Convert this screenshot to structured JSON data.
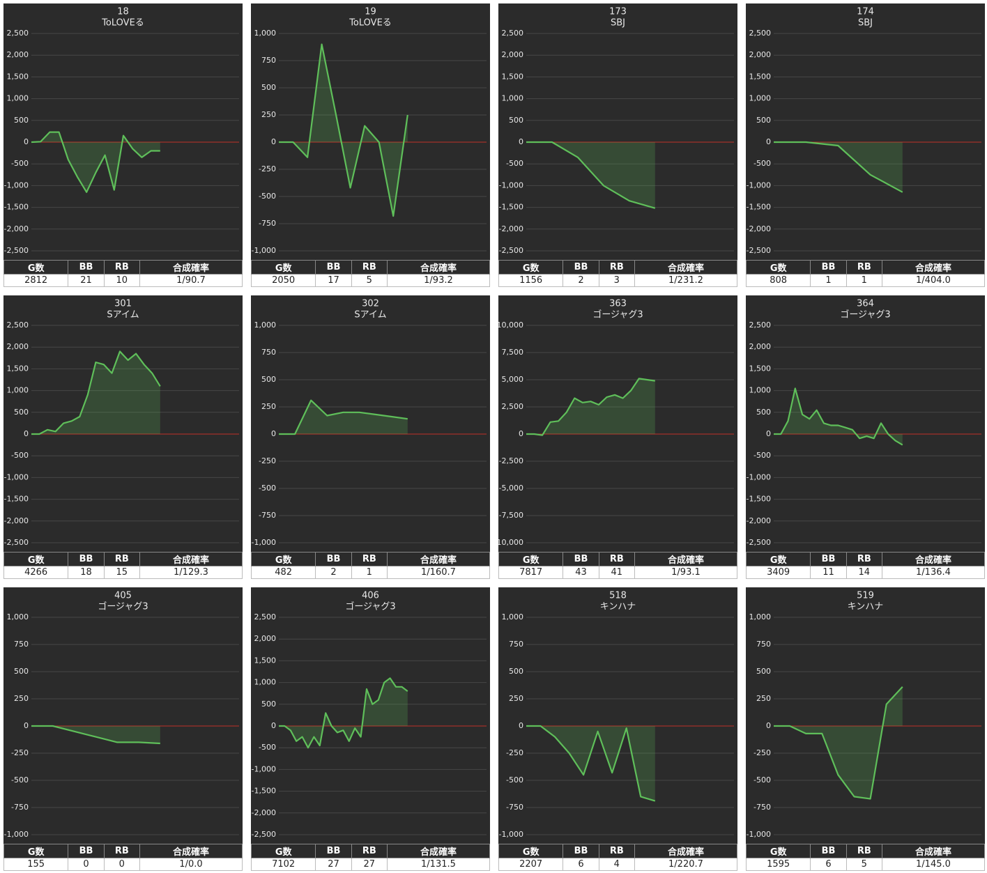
{
  "chart_data": [
    {
      "type": "line",
      "title": "18",
      "subtitle": "ToLOVEる",
      "color": "#5fbf5a",
      "grid": true,
      "ylim": [
        -2500,
        2500
      ],
      "yticks": [
        {
          "value": -2500,
          "label": "-2,500"
        },
        {
          "value": -2000,
          "label": "-2,000"
        },
        {
          "value": -1500,
          "label": "-1,500"
        },
        {
          "value": -1000,
          "label": "-1,000"
        },
        -500,
        0,
        500,
        {
          "value": 1000,
          "label": "1,000"
        },
        {
          "value": 1500,
          "label": "1,500"
        },
        {
          "value": 2000,
          "label": "2,000"
        },
        {
          "value": 2500,
          "label": "2,500"
        }
      ],
      "values": [
        0,
        10,
        230,
        230,
        -400,
        -800,
        -1150,
        -700,
        -300,
        -1100,
        150,
        -150,
        -350,
        -200,
        -200
      ],
      "table": {
        "columns": [
          "G数",
          "BB",
          "RB",
          "合成確率"
        ],
        "row": [
          2812,
          21,
          10,
          "1/90.7"
        ]
      }
    },
    {
      "type": "line",
      "title": "19",
      "subtitle": "ToLOVEる",
      "color": "#5fbf5a",
      "grid": true,
      "ylim": [
        -1000,
        1000
      ],
      "yticks": [
        {
          "value": -1000,
          "label": "-1,000"
        },
        -750,
        -500,
        -250,
        0,
        250,
        500,
        750,
        {
          "value": 1000,
          "label": "1,000"
        }
      ],
      "values": [
        0,
        0,
        -140,
        900,
        250,
        -420,
        150,
        0,
        -680,
        250
      ],
      "table": {
        "columns": [
          "G数",
          "BB",
          "RB",
          "合成確率"
        ],
        "row": [
          2050,
          17,
          5,
          "1/93.2"
        ]
      }
    },
    {
      "type": "line",
      "title": "173",
      "subtitle": "SBJ",
      "color": "#5fbf5a",
      "grid": true,
      "ylim": [
        -2500,
        2500
      ],
      "yticks": [
        {
          "value": -2500,
          "label": "-2,500"
        },
        {
          "value": -2000,
          "label": "-2,000"
        },
        {
          "value": -1500,
          "label": "-1,500"
        },
        {
          "value": -1000,
          "label": "-1,000"
        },
        -500,
        0,
        500,
        {
          "value": 1000,
          "label": "1,000"
        },
        {
          "value": 1500,
          "label": "1,500"
        },
        {
          "value": 2000,
          "label": "2,000"
        },
        {
          "value": 2500,
          "label": "2,500"
        }
      ],
      "values": [
        0,
        0,
        -350,
        -1000,
        -1350,
        -1520
      ],
      "table": {
        "columns": [
          "G数",
          "BB",
          "RB",
          "合成確率"
        ],
        "row": [
          1156,
          2,
          3,
          "1/231.2"
        ]
      }
    },
    {
      "type": "line",
      "title": "174",
      "subtitle": "SBJ",
      "color": "#5fbf5a",
      "grid": true,
      "ylim": [
        -2500,
        2500
      ],
      "yticks": [
        {
          "value": -2500,
          "label": "-2,500"
        },
        {
          "value": -2000,
          "label": "-2,000"
        },
        {
          "value": -1500,
          "label": "-1,500"
        },
        {
          "value": -1000,
          "label": "-1,000"
        },
        -500,
        0,
        500,
        {
          "value": 1000,
          "label": "1,000"
        },
        {
          "value": 1500,
          "label": "1,500"
        },
        {
          "value": 2000,
          "label": "2,000"
        },
        {
          "value": 2500,
          "label": "2,500"
        }
      ],
      "values": [
        0,
        0,
        -80,
        -750,
        -1150
      ],
      "table": {
        "columns": [
          "G数",
          "BB",
          "RB",
          "合成確率"
        ],
        "row": [
          808,
          1,
          1,
          "1/404.0"
        ]
      }
    },
    {
      "type": "line",
      "title": "301",
      "subtitle": "Sアイム",
      "color": "#5fbf5a",
      "grid": true,
      "ylim": [
        -2500,
        2500
      ],
      "yticks": [
        {
          "value": -2500,
          "label": "-2,500"
        },
        {
          "value": -2000,
          "label": "-2,000"
        },
        {
          "value": -1500,
          "label": "-1,500"
        },
        {
          "value": -1000,
          "label": "-1,000"
        },
        -500,
        0,
        500,
        {
          "value": 1000,
          "label": "1,000"
        },
        {
          "value": 1500,
          "label": "1,500"
        },
        {
          "value": 2000,
          "label": "2,000"
        },
        {
          "value": 2500,
          "label": "2,500"
        }
      ],
      "values": [
        0,
        0,
        100,
        60,
        250,
        300,
        400,
        900,
        1650,
        1600,
        1400,
        1900,
        1700,
        1850,
        1600,
        1400,
        1100
      ],
      "table": {
        "columns": [
          "G数",
          "BB",
          "RB",
          "合成確率"
        ],
        "row": [
          4266,
          18,
          15,
          "1/129.3"
        ]
      }
    },
    {
      "type": "line",
      "title": "302",
      "subtitle": "Sアイム",
      "color": "#5fbf5a",
      "grid": true,
      "ylim": [
        -1000,
        1000
      ],
      "yticks": [
        {
          "value": -1000,
          "label": "-1,000"
        },
        -750,
        -500,
        -250,
        0,
        250,
        500,
        750,
        {
          "value": 1000,
          "label": "1,000"
        }
      ],
      "values": [
        0,
        0,
        310,
        170,
        200,
        200,
        180,
        160,
        140
      ],
      "table": {
        "columns": [
          "G数",
          "BB",
          "RB",
          "合成確率"
        ],
        "row": [
          482,
          2,
          1,
          "1/160.7"
        ]
      }
    },
    {
      "type": "line",
      "title": "363",
      "subtitle": "ゴージャグ3",
      "color": "#5fbf5a",
      "grid": true,
      "ylim": [
        -10000,
        10000
      ],
      "yticks": [
        {
          "value": -10000,
          "label": "-10,000"
        },
        {
          "value": -7500,
          "label": "-7,500"
        },
        {
          "value": -5000,
          "label": "-5,000"
        },
        {
          "value": -2500,
          "label": "-2,500"
        },
        0,
        {
          "value": 2500,
          "label": "2,500"
        },
        {
          "value": 5000,
          "label": "5,000"
        },
        {
          "value": 7500,
          "label": "7,500"
        },
        {
          "value": 10000,
          "label": "10,000"
        }
      ],
      "values": [
        0,
        0,
        -100,
        1100,
        1200,
        2000,
        3300,
        2900,
        3000,
        2700,
        3400,
        3600,
        3300,
        4000,
        5100,
        5000,
        4900
      ],
      "table": {
        "columns": [
          "G数",
          "BB",
          "RB",
          "合成確率"
        ],
        "row": [
          7817,
          43,
          41,
          "1/93.1"
        ]
      }
    },
    {
      "type": "line",
      "title": "364",
      "subtitle": "ゴージャグ3",
      "color": "#5fbf5a",
      "grid": true,
      "ylim": [
        -2500,
        2500
      ],
      "yticks": [
        {
          "value": -2500,
          "label": "-2,500"
        },
        {
          "value": -2000,
          "label": "-2,000"
        },
        {
          "value": -1500,
          "label": "-1,500"
        },
        {
          "value": -1000,
          "label": "-1,000"
        },
        -500,
        0,
        500,
        {
          "value": 1000,
          "label": "1,000"
        },
        {
          "value": 1500,
          "label": "1,500"
        },
        {
          "value": 2000,
          "label": "2,000"
        },
        {
          "value": 2500,
          "label": "2,500"
        }
      ],
      "values": [
        0,
        0,
        300,
        1050,
        450,
        350,
        550,
        250,
        200,
        200,
        150,
        100,
        -100,
        -50,
        -100,
        250,
        0,
        -150,
        -250
      ],
      "table": {
        "columns": [
          "G数",
          "BB",
          "RB",
          "合成確率"
        ],
        "row": [
          3409,
          11,
          14,
          "1/136.4"
        ]
      }
    },
    {
      "type": "line",
      "title": "405",
      "subtitle": "ゴージャグ3",
      "color": "#5fbf5a",
      "grid": true,
      "ylim": [
        -1000,
        1000
      ],
      "yticks": [
        {
          "value": -1000,
          "label": "-1,000"
        },
        -750,
        -500,
        -250,
        0,
        250,
        500,
        750,
        {
          "value": 1000,
          "label": "1,000"
        }
      ],
      "values": [
        0,
        0,
        -50,
        -100,
        -150,
        -150,
        -160
      ],
      "table": {
        "columns": [
          "G数",
          "BB",
          "RB",
          "合成確率"
        ],
        "row": [
          155,
          0,
          0,
          "1/0.0"
        ]
      }
    },
    {
      "type": "line",
      "title": "406",
      "subtitle": "ゴージャグ3",
      "color": "#5fbf5a",
      "grid": true,
      "ylim": [
        -2500,
        2500
      ],
      "yticks": [
        {
          "value": -2500,
          "label": "-2,500"
        },
        {
          "value": -2000,
          "label": "-2,000"
        },
        {
          "value": -1500,
          "label": "-1,500"
        },
        {
          "value": -1000,
          "label": "-1,000"
        },
        -500,
        0,
        500,
        {
          "value": 1000,
          "label": "1,000"
        },
        {
          "value": 1500,
          "label": "1,500"
        },
        {
          "value": 2000,
          "label": "2,000"
        },
        {
          "value": 2500,
          "label": "2,500"
        }
      ],
      "values": [
        0,
        0,
        -100,
        -350,
        -250,
        -500,
        -250,
        -450,
        300,
        0,
        -150,
        -100,
        -350,
        -50,
        -250,
        850,
        500,
        600,
        1000,
        1100,
        900,
        900,
        800
      ],
      "table": {
        "columns": [
          "G数",
          "BB",
          "RB",
          "合成確率"
        ],
        "row": [
          7102,
          27,
          27,
          "1/131.5"
        ]
      }
    },
    {
      "type": "line",
      "title": "518",
      "subtitle": "キンハナ",
      "color": "#5fbf5a",
      "grid": true,
      "ylim": [
        -1000,
        1000
      ],
      "yticks": [
        {
          "value": -1000,
          "label": "-1,000"
        },
        -750,
        -500,
        -250,
        0,
        250,
        500,
        750,
        {
          "value": 1000,
          "label": "1,000"
        }
      ],
      "values": [
        0,
        0,
        -100,
        -250,
        -450,
        -50,
        -430,
        -20,
        -650,
        -690
      ],
      "table": {
        "columns": [
          "G数",
          "BB",
          "RB",
          "合成確率"
        ],
        "row": [
          2207,
          6,
          4,
          "1/220.7"
        ]
      }
    },
    {
      "type": "line",
      "title": "519",
      "subtitle": "キンハナ",
      "color": "#5fbf5a",
      "grid": true,
      "ylim": [
        -1000,
        1000
      ],
      "yticks": [
        {
          "value": -1000,
          "label": "-1,000"
        },
        -750,
        -500,
        -250,
        0,
        250,
        500,
        750,
        {
          "value": 1000,
          "label": "1,000"
        }
      ],
      "values": [
        0,
        0,
        -70,
        -70,
        -450,
        -650,
        -670,
        200,
        360
      ],
      "table": {
        "columns": [
          "G数",
          "BB",
          "RB",
          "合成確率"
        ],
        "row": [
          1595,
          6,
          5,
          "1/145.0"
        ]
      }
    }
  ]
}
